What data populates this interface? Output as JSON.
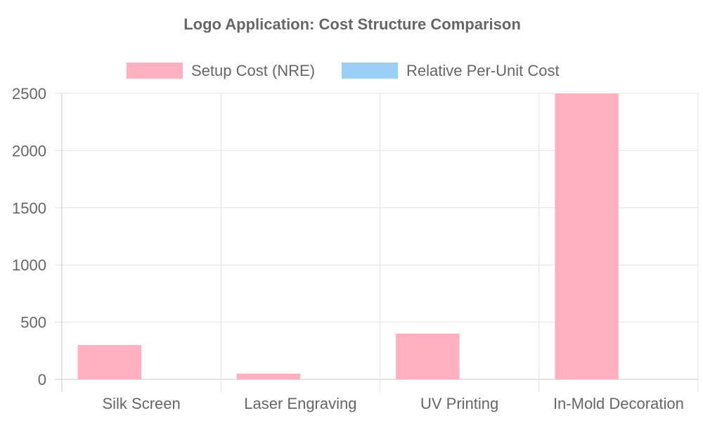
{
  "chart_data": {
    "type": "bar",
    "title": "Logo Application: Cost Structure Comparison",
    "categories": [
      "Silk Screen",
      "Laser Engraving",
      "UV Printing",
      "In-Mold Decoration"
    ],
    "series": [
      {
        "name": "Setup Cost (NRE)",
        "values": [
          300,
          50,
          400,
          2500
        ],
        "fill": "#ffb1c1",
        "stroke": "#ff6384"
      },
      {
        "name": "Relative Per-Unit Cost",
        "values": [
          0,
          0,
          0,
          0
        ],
        "fill": "#9ad0f5",
        "stroke": "#36a2eb"
      }
    ],
    "ylim": [
      0,
      2500
    ],
    "yticks": [
      0,
      500,
      1000,
      1500,
      2000,
      2500
    ],
    "xlabel": "",
    "ylabel": "",
    "grid": true,
    "legend_position": "top"
  }
}
